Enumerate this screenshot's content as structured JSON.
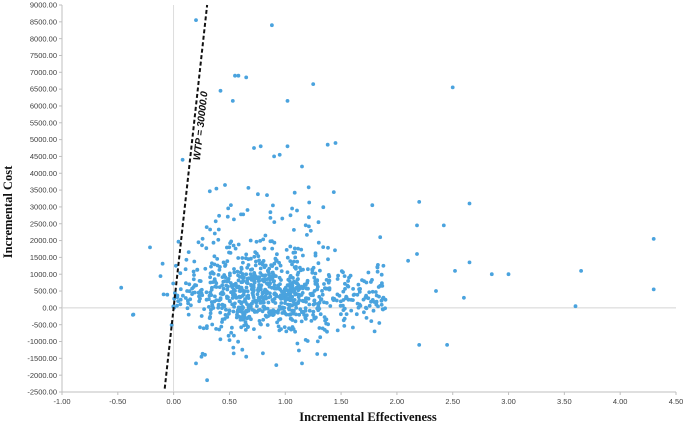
{
  "chart_data": {
    "type": "scatter",
    "title": "",
    "xlabel": "Incremental Effectiveness",
    "ylabel": "Incremental Cost",
    "xlim": [
      -1.0,
      4.5
    ],
    "ylim": [
      -2500,
      9000
    ],
    "x_ticks": [
      "-1.00",
      "-0.50",
      "0.00",
      "0.50",
      "1.00",
      "1.50",
      "2.00",
      "2.50",
      "3.00",
      "3.50",
      "4.00",
      "4.50"
    ],
    "y_ticks": [
      "-2500.00",
      "-2000.00",
      "-1500.00",
      "-1000.00",
      "-500.00",
      "0.00",
      "500.00",
      "1000.00",
      "1500.00",
      "2000.00",
      "2500.00",
      "3000.00",
      "3500.00",
      "4000.00",
      "4500.00",
      "5000.00",
      "5500.00",
      "6000.00",
      "6500.00",
      "7000.00",
      "7500.00",
      "8000.00",
      "8500.00",
      "9000.00"
    ],
    "wtp_line": {
      "label": "WTP = 30000.0",
      "slope": 30000
    },
    "point_color": "#4aa3de",
    "grid": false,
    "legend": "none",
    "series": [
      {
        "points": [
          [
            -0.47,
            600
          ],
          [
            -0.09,
            400
          ],
          [
            0.02,
            1250
          ],
          [
            0.08,
            4400
          ],
          [
            0.04,
            200
          ],
          [
            0.2,
            8550
          ],
          [
            0.88,
            8400
          ],
          [
            0.55,
            6900
          ],
          [
            0.58,
            6900
          ],
          [
            0.65,
            6850
          ],
          [
            1.25,
            6650
          ],
          [
            2.5,
            6550
          ],
          [
            0.42,
            6450
          ],
          [
            0.53,
            6150
          ],
          [
            1.02,
            6150
          ],
          [
            1.38,
            4850
          ],
          [
            1.45,
            4900
          ],
          [
            1.02,
            4800
          ],
          [
            0.9,
            4500
          ],
          [
            0.95,
            4550
          ],
          [
            0.78,
            4800
          ],
          [
            0.72,
            4750
          ],
          [
            1.15,
            4200
          ],
          [
            0.46,
            3650
          ],
          [
            2.65,
            3100
          ],
          [
            2.2,
            3150
          ],
          [
            1.78,
            3050
          ],
          [
            2.18,
            2450
          ],
          [
            2.42,
            2450
          ],
          [
            1.85,
            2100
          ],
          [
            4.3,
            2050
          ],
          [
            2.18,
            1600
          ],
          [
            2.1,
            1400
          ],
          [
            2.52,
            1100
          ],
          [
            2.65,
            1350
          ],
          [
            2.85,
            1000
          ],
          [
            3.0,
            1000
          ],
          [
            3.65,
            1100
          ],
          [
            4.3,
            550
          ],
          [
            3.6,
            50
          ],
          [
            2.6,
            300
          ],
          [
            2.35,
            500
          ],
          [
            2.2,
            -1100
          ],
          [
            2.45,
            -1100
          ],
          [
            1.8,
            -700
          ],
          [
            1.15,
            -1650
          ],
          [
            0.92,
            -1700
          ],
          [
            0.2,
            -1650
          ],
          [
            0.25,
            -1450
          ],
          [
            0.3,
            -2150
          ],
          [
            0.65,
            -1450
          ],
          [
            0.8,
            -1350
          ]
        ]
      }
    ]
  }
}
